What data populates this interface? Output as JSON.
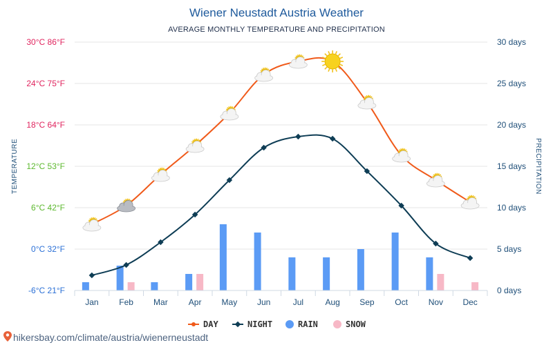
{
  "chart_data": {
    "type": "line",
    "title": "Wiener Neustadt Austria Weather",
    "subtitle": "AVERAGE MONTHLY TEMPERATURE AND PRECIPITATION",
    "ylabel_left": "TEMPERATURE",
    "ylabel_right": "PRECIPITATION",
    "categories": [
      "Jan",
      "Feb",
      "Mar",
      "Apr",
      "May",
      "Jun",
      "Jul",
      "Aug",
      "Sep",
      "Oct",
      "Nov",
      "Dec"
    ],
    "left_axis": {
      "unit": "°C",
      "ylim": [
        -6,
        30
      ],
      "ticks": [
        {
          "value": 30,
          "label": "30°C 86°F",
          "color": "#e0245e"
        },
        {
          "value": 24,
          "label": "24°C 75°F",
          "color": "#e0245e"
        },
        {
          "value": 18,
          "label": "18°C 64°F",
          "color": "#e0245e"
        },
        {
          "value": 12,
          "label": "12°C 53°F",
          "color": "#5cb82e"
        },
        {
          "value": 6,
          "label": "6°C 42°F",
          "color": "#5cb82e"
        },
        {
          "value": 0,
          "label": "0°C 32°F",
          "color": "#2a6fd6"
        },
        {
          "value": -6,
          "label": "-6°C 21°F",
          "color": "#2a6fd6"
        }
      ]
    },
    "right_axis": {
      "unit": "days",
      "ylim": [
        0,
        30
      ],
      "ticks": [
        {
          "value": 30,
          "label": "30 days"
        },
        {
          "value": 25,
          "label": "25 days"
        },
        {
          "value": 20,
          "label": "20 days"
        },
        {
          "value": 15,
          "label": "15 days"
        },
        {
          "value": 10,
          "label": "10 days"
        },
        {
          "value": 5,
          "label": "5 days"
        },
        {
          "value": 0,
          "label": "0 days"
        }
      ]
    },
    "series": [
      {
        "name": "DAY",
        "axis": "left",
        "color": "#f05a1a",
        "values": [
          3.6,
          6.3,
          10.8,
          15.0,
          19.7,
          25.3,
          27.2,
          27.2,
          21.3,
          13.6,
          10.0,
          6.8
        ]
      },
      {
        "name": "NIGHT",
        "axis": "left",
        "color": "#0e3d55",
        "values": [
          -3.8,
          -2.3,
          1.0,
          5.0,
          10.0,
          14.7,
          16.3,
          16.0,
          11.3,
          6.3,
          0.8,
          -1.3
        ]
      },
      {
        "name": "RAIN",
        "axis": "right",
        "color": "#5b9bf5",
        "type": "bar",
        "values": [
          1,
          3,
          1,
          2,
          8,
          7,
          4,
          4,
          5,
          7,
          4,
          0
        ]
      },
      {
        "name": "SNOW",
        "axis": "right",
        "color": "#f7b8c6",
        "type": "bar",
        "values": [
          0,
          1,
          0,
          2,
          0,
          0,
          0,
          0,
          0,
          0,
          2,
          1
        ]
      }
    ],
    "weather_icons": [
      "partly-cloudy-icon",
      "cloudy-icon",
      "partly-cloudy-icon",
      "partly-cloudy-icon",
      "partly-cloudy-icon",
      "partly-cloudy-icon",
      "partly-cloudy-icon",
      "sun-icon",
      "partly-cloudy-icon",
      "partly-cloudy-icon",
      "partly-cloudy-icon",
      "partly-cloudy-icon"
    ],
    "legend": [
      {
        "label": "DAY",
        "color": "#f05a1a",
        "kind": "line"
      },
      {
        "label": "NIGHT",
        "color": "#0e3d55",
        "kind": "line"
      },
      {
        "label": "RAIN",
        "color": "#5b9bf5",
        "kind": "dot"
      },
      {
        "label": "SNOW",
        "color": "#f7b8c6",
        "kind": "dot"
      }
    ],
    "grid": true,
    "legend_position": "bottom"
  },
  "source": "hikersbay.com/climate/austria/wienerneustadt"
}
